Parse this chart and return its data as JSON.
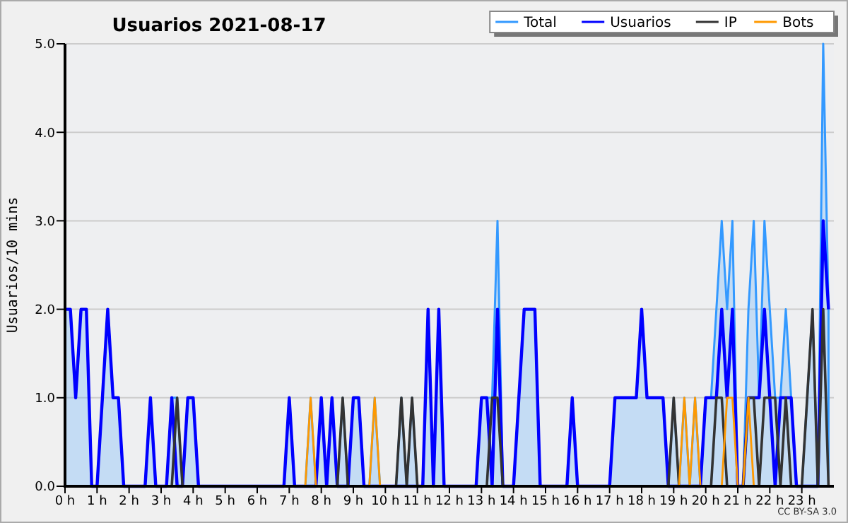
{
  "chart_data": {
    "type": "line",
    "title": "Usuarios  2021-08-17",
    "ylabel": "Usuarios/10 mins",
    "x": [
      0,
      0.167,
      0.333,
      0.5,
      0.667,
      0.833,
      1,
      1.167,
      1.333,
      1.5,
      1.667,
      1.833,
      2,
      2.167,
      2.333,
      2.5,
      2.667,
      2.833,
      3,
      3.167,
      3.333,
      3.5,
      3.667,
      3.833,
      4,
      4.167,
      4.333,
      4.5,
      4.667,
      4.833,
      5,
      5.167,
      5.333,
      5.5,
      5.667,
      5.833,
      6,
      6.167,
      6.333,
      6.5,
      6.667,
      6.833,
      7,
      7.167,
      7.333,
      7.5,
      7.667,
      7.833,
      8,
      8.167,
      8.333,
      8.5,
      8.667,
      8.833,
      9,
      9.167,
      9.333,
      9.5,
      9.667,
      9.833,
      10,
      10.167,
      10.333,
      10.5,
      10.667,
      10.833,
      11,
      11.167,
      11.333,
      11.5,
      11.667,
      11.833,
      12,
      12.167,
      12.333,
      12.5,
      12.667,
      12.833,
      13,
      13.167,
      13.333,
      13.5,
      13.667,
      13.833,
      14,
      14.167,
      14.333,
      14.5,
      14.667,
      14.833,
      15,
      15.167,
      15.333,
      15.5,
      15.667,
      15.833,
      16,
      16.167,
      16.333,
      16.5,
      16.667,
      16.833,
      17,
      17.167,
      17.333,
      17.5,
      17.667,
      17.833,
      18,
      18.167,
      18.333,
      18.5,
      18.667,
      18.833,
      19,
      19.167,
      19.333,
      19.5,
      19.667,
      19.833,
      20,
      20.167,
      20.333,
      20.5,
      20.667,
      20.833,
      21,
      21.167,
      21.333,
      21.5,
      21.667,
      21.833,
      22,
      22.167,
      22.333,
      22.5,
      22.667,
      22.833,
      23,
      23.167,
      23.333,
      23.5,
      23.667,
      23.833
    ],
    "series": [
      {
        "name": "Total",
        "type": "area",
        "color": "#3399ff",
        "values": [
          2,
          2,
          1,
          2,
          2,
          0,
          0,
          1,
          2,
          1,
          1,
          0,
          0,
          0,
          0,
          0,
          1,
          0,
          0,
          0,
          1,
          1,
          0,
          1,
          1,
          0,
          0,
          0,
          0,
          0,
          0,
          0,
          0,
          0,
          0,
          0,
          0,
          0,
          0,
          0,
          0,
          0,
          1,
          0,
          0,
          0,
          1,
          0,
          1,
          0,
          1,
          0,
          1,
          0,
          1,
          1,
          0,
          0,
          1,
          0,
          0,
          0,
          0,
          1,
          0,
          1,
          0,
          0,
          2,
          0,
          2,
          0,
          0,
          0,
          0,
          0,
          0,
          0,
          1,
          1,
          1,
          3,
          0,
          0,
          0,
          1,
          2,
          2,
          2,
          0,
          0,
          0,
          0,
          0,
          0,
          1,
          0,
          0,
          0,
          0,
          0,
          0,
          0,
          1,
          1,
          1,
          1,
          1,
          2,
          1,
          1,
          1,
          1,
          0,
          1,
          0,
          1,
          0,
          1,
          0,
          1,
          1,
          2,
          3,
          2,
          3,
          0,
          0,
          2,
          3,
          1,
          3,
          2,
          1,
          1,
          2,
          1,
          0,
          0,
          1,
          2,
          0,
          5,
          2
        ]
      },
      {
        "name": "Usuarios",
        "color": "#0000ff",
        "values": [
          2,
          2,
          1,
          2,
          2,
          0,
          0,
          1,
          2,
          1,
          1,
          0,
          0,
          0,
          0,
          0,
          1,
          0,
          0,
          0,
          1,
          0,
          0,
          1,
          1,
          0,
          0,
          0,
          0,
          0,
          0,
          0,
          0,
          0,
          0,
          0,
          0,
          0,
          0,
          0,
          0,
          0,
          1,
          0,
          0,
          0,
          0,
          0,
          1,
          0,
          1,
          0,
          0,
          0,
          1,
          1,
          0,
          0,
          0,
          0,
          0,
          0,
          0,
          0,
          0,
          0,
          0,
          0,
          2,
          0,
          2,
          0,
          0,
          0,
          0,
          0,
          0,
          0,
          1,
          1,
          0,
          2,
          0,
          0,
          0,
          1,
          2,
          2,
          2,
          0,
          0,
          0,
          0,
          0,
          0,
          1,
          0,
          0,
          0,
          0,
          0,
          0,
          0,
          1,
          1,
          1,
          1,
          1,
          2,
          1,
          1,
          1,
          1,
          0,
          0,
          0,
          0,
          0,
          0,
          0,
          1,
          1,
          1,
          2,
          1,
          2,
          0,
          0,
          1,
          1,
          1,
          2,
          1,
          0,
          1,
          1,
          1,
          0,
          0,
          0,
          0,
          0,
          3,
          2
        ]
      },
      {
        "name": "IP",
        "color": "#333333",
        "values": [
          0,
          0,
          0,
          0,
          0,
          0,
          0,
          0,
          0,
          0,
          0,
          0,
          0,
          0,
          0,
          0,
          0,
          0,
          0,
          0,
          0,
          1,
          0,
          0,
          0,
          0,
          0,
          0,
          0,
          0,
          0,
          0,
          0,
          0,
          0,
          0,
          0,
          0,
          0,
          0,
          0,
          0,
          0,
          0,
          0,
          0,
          0,
          0,
          0,
          0,
          0,
          0,
          1,
          0,
          0,
          0,
          0,
          0,
          0,
          0,
          0,
          0,
          0,
          1,
          0,
          1,
          0,
          0,
          0,
          0,
          0,
          0,
          0,
          0,
          0,
          0,
          0,
          0,
          0,
          0,
          1,
          1,
          0,
          0,
          0,
          0,
          0,
          0,
          0,
          0,
          0,
          0,
          0,
          0,
          0,
          0,
          0,
          0,
          0,
          0,
          0,
          0,
          0,
          0,
          0,
          0,
          0,
          0,
          0,
          0,
          0,
          0,
          0,
          0,
          1,
          0,
          0,
          0,
          0,
          0,
          0,
          0,
          1,
          1,
          0,
          0,
          0,
          0,
          1,
          1,
          0,
          1,
          1,
          1,
          0,
          1,
          0,
          0,
          0,
          1,
          2,
          0,
          2,
          0
        ]
      },
      {
        "name": "Bots",
        "color": "#ff9900",
        "values": [
          null,
          null,
          null,
          null,
          null,
          null,
          null,
          null,
          null,
          null,
          null,
          null,
          null,
          null,
          null,
          null,
          null,
          null,
          null,
          null,
          null,
          null,
          null,
          null,
          null,
          null,
          null,
          null,
          null,
          null,
          null,
          null,
          null,
          null,
          null,
          null,
          null,
          null,
          null,
          null,
          null,
          null,
          null,
          null,
          null,
          0,
          1,
          0,
          null,
          null,
          null,
          null,
          null,
          null,
          null,
          null,
          null,
          0,
          1,
          0,
          null,
          null,
          null,
          null,
          null,
          null,
          null,
          null,
          null,
          null,
          null,
          null,
          null,
          null,
          null,
          null,
          null,
          null,
          null,
          null,
          null,
          null,
          null,
          null,
          null,
          null,
          null,
          null,
          null,
          null,
          null,
          null,
          null,
          null,
          null,
          null,
          null,
          null,
          null,
          null,
          null,
          null,
          null,
          null,
          null,
          null,
          null,
          null,
          null,
          null,
          null,
          null,
          null,
          null,
          null,
          0,
          1,
          0,
          1,
          0,
          null,
          null,
          null,
          0,
          1,
          1,
          0,
          0,
          1,
          0,
          null,
          null,
          null,
          null,
          null,
          null,
          null,
          null,
          null,
          null,
          null,
          null,
          null,
          null
        ]
      }
    ],
    "xlim": [
      0,
      24
    ],
    "xticks": [
      {
        "value": 0,
        "label": "0 h"
      },
      {
        "value": 1,
        "label": "1 h"
      },
      {
        "value": 2,
        "label": "2 h"
      },
      {
        "value": 3,
        "label": "3 h"
      },
      {
        "value": 4,
        "label": "4 h"
      },
      {
        "value": 5,
        "label": "5 h"
      },
      {
        "value": 6,
        "label": "6 h"
      },
      {
        "value": 7,
        "label": "7 h"
      },
      {
        "value": 8,
        "label": "8 h"
      },
      {
        "value": 9,
        "label": "9 h"
      },
      {
        "value": 10,
        "label": "10 h"
      },
      {
        "value": 11,
        "label": "11 h"
      },
      {
        "value": 12,
        "label": "12 h"
      },
      {
        "value": 13,
        "label": "13 h"
      },
      {
        "value": 14,
        "label": "14 h"
      },
      {
        "value": 15,
        "label": "15 h"
      },
      {
        "value": 16,
        "label": "16 h"
      },
      {
        "value": 17,
        "label": "17 h"
      },
      {
        "value": 18,
        "label": "18 h"
      },
      {
        "value": 19,
        "label": "19 h"
      },
      {
        "value": 20,
        "label": "20 h"
      },
      {
        "value": 21,
        "label": "21 h"
      },
      {
        "value": 22,
        "label": "22 h"
      },
      {
        "value": 23,
        "label": "23 h"
      }
    ],
    "ylim": [
      0,
      5
    ],
    "yticks": [
      {
        "value": 0,
        "label": "0.0"
      },
      {
        "value": 1,
        "label": "1.0"
      },
      {
        "value": 2,
        "label": "2.0"
      },
      {
        "value": 3,
        "label": "3.0"
      },
      {
        "value": 4,
        "label": "4.0"
      },
      {
        "value": 5,
        "label": "5.0"
      }
    ],
    "grid": "y",
    "legend": "top right",
    "marker": "none",
    "line_style": "solid",
    "annotations": [
      "CC BY-SA 3.0"
    ]
  }
}
